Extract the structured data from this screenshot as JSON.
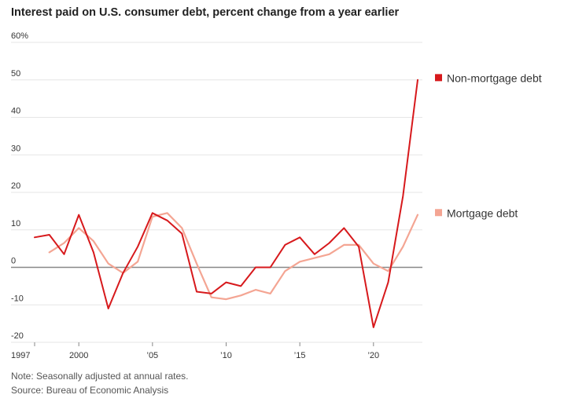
{
  "chart_data": {
    "type": "line",
    "title": "Interest paid on U.S. consumer debt, percent change from a year earlier",
    "xlabel": "",
    "ylabel": "",
    "xlim": [
      1997,
      2023
    ],
    "ylim": [
      -20,
      60
    ],
    "y_ticks": [
      60,
      50,
      40,
      30,
      20,
      10,
      0,
      -10,
      -20
    ],
    "y_tick_labels": [
      "60%",
      "50",
      "40",
      "30",
      "20",
      "10",
      "0",
      "-10",
      "-20"
    ],
    "x_ticks": [
      1997,
      2000,
      2005,
      2010,
      2015,
      2020
    ],
    "x_tick_labels": [
      "1997",
      "2000",
      "’05",
      "’10",
      "’15",
      "’20"
    ],
    "grid": true,
    "legend_position": "right",
    "series": [
      {
        "name": "Non-mortgage debt",
        "color": "#d7191c",
        "x": [
          1997,
          1998,
          1999,
          2000,
          2001,
          2002,
          2003,
          2004,
          2005,
          2006,
          2007,
          2008,
          2009,
          2010,
          2011,
          2012,
          2013,
          2014,
          2015,
          2016,
          2017,
          2018,
          2019,
          2020,
          2021,
          2022,
          2023
        ],
        "values": [
          8,
          8.7,
          3.5,
          14,
          4,
          -11,
          -1.5,
          5.5,
          14.5,
          12.5,
          9,
          -6.5,
          -7,
          -4,
          -5,
          0,
          0,
          6,
          8,
          3.5,
          6.5,
          10.5,
          5.5,
          -16,
          -4,
          19,
          50
        ]
      },
      {
        "name": "Mortgage debt",
        "color": "#f4a593",
        "x": [
          1998,
          1999,
          2000,
          2001,
          2002,
          2003,
          2004,
          2005,
          2006,
          2007,
          2008,
          2009,
          2010,
          2011,
          2012,
          2013,
          2014,
          2015,
          2016,
          2017,
          2018,
          2019,
          2020,
          2021,
          2022,
          2023
        ],
        "values": [
          4,
          6.5,
          10.5,
          7,
          1,
          -1.5,
          1.5,
          13.5,
          14.5,
          10.5,
          1,
          -8,
          -8.5,
          -7.5,
          -6,
          -7,
          -1,
          1.5,
          2.5,
          3.5,
          6,
          6,
          1,
          -1,
          5.5,
          14
        ]
      }
    ]
  },
  "notes": {
    "note": "Note: Seasonally adjusted at annual rates.",
    "source": "Source: Bureau of Economic Analysis"
  }
}
